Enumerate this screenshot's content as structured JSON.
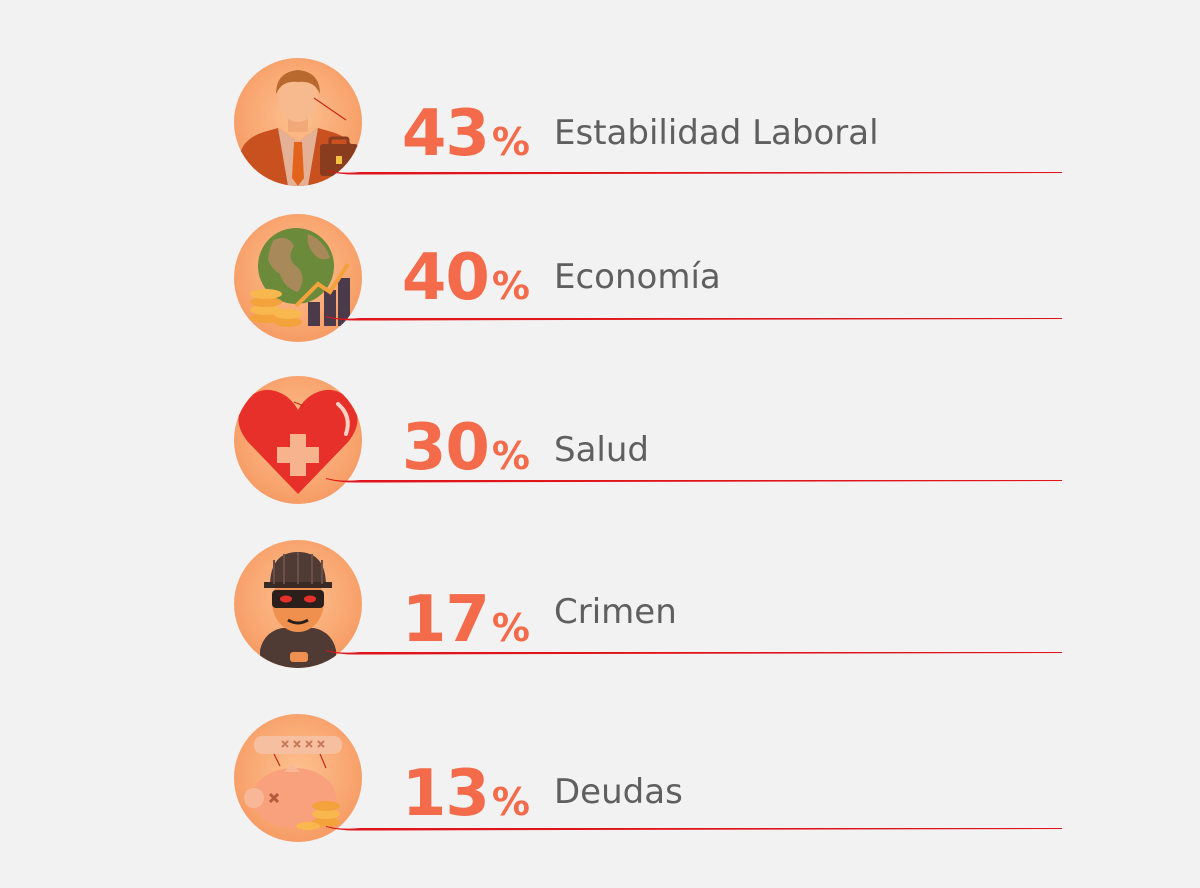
{
  "chart_data": {
    "type": "bar",
    "categories": [
      "Estabilidad Laboral",
      "Economía",
      "Salud",
      "Crimen",
      "Deudas"
    ],
    "values": [
      43,
      40,
      30,
      17,
      13
    ],
    "unit": "%",
    "title": "",
    "xlabel": "",
    "ylabel": ""
  },
  "rows": [
    {
      "value": "43",
      "sign": "%",
      "label": "Estabilidad Laboral",
      "icon": "businessman-icon"
    },
    {
      "value": "40",
      "sign": "%",
      "label": "Economía",
      "icon": "globe-growth-icon"
    },
    {
      "value": "30",
      "sign": "%",
      "label": "Salud",
      "icon": "heart-cross-icon"
    },
    {
      "value": "17",
      "sign": "%",
      "label": "Crimen",
      "icon": "thief-icon"
    },
    {
      "value": "13",
      "sign": "%",
      "label": "Deudas",
      "icon": "piggy-bank-icon"
    }
  ],
  "colors": {
    "background": "#f2f2f2",
    "percent": "#f36b4a",
    "label": "#5f5f5f",
    "underline": "#e0141b",
    "circle": "#f9a670"
  }
}
